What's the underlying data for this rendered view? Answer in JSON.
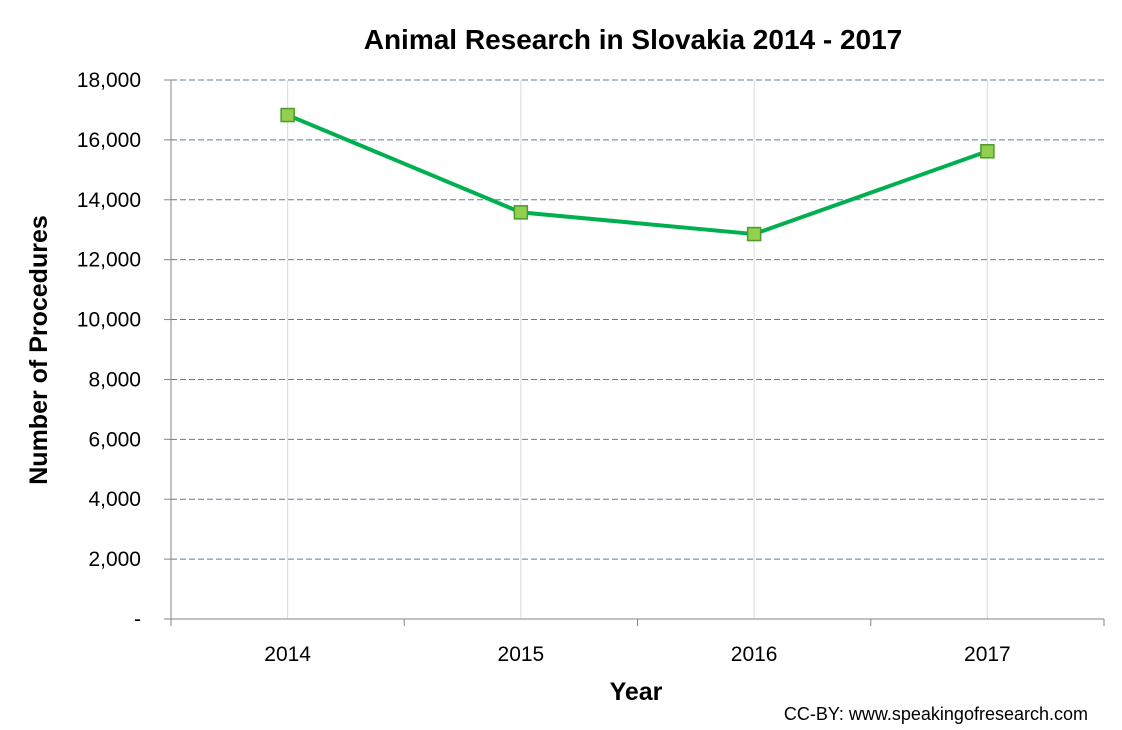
{
  "chart_data": {
    "type": "line",
    "title": "Animal Research in Slovakia 2014 - 2017",
    "xlabel": "Year",
    "ylabel": "Number of Procedures",
    "categories": [
      "2014",
      "2015",
      "2016",
      "2017"
    ],
    "series": [
      {
        "name": "Number of Procedures",
        "values": [
          16829,
          13580,
          12855,
          15620
        ],
        "color": "#00b050",
        "marker_color": "#92d050",
        "marker_border": "#4e9a2a"
      }
    ],
    "ylim": [
      0,
      18000
    ],
    "yticks": [
      0,
      2000,
      4000,
      6000,
      8000,
      10000,
      12000,
      14000,
      16000,
      18000
    ],
    "ytick_labels": [
      "-",
      "2,000",
      "4,000",
      "6,000",
      "8,000",
      "10,000",
      "12,000",
      "14,000",
      "16,000",
      "18,000"
    ],
    "grid": true,
    "credit": "CC-BY: www.speakingofresearch.com"
  }
}
